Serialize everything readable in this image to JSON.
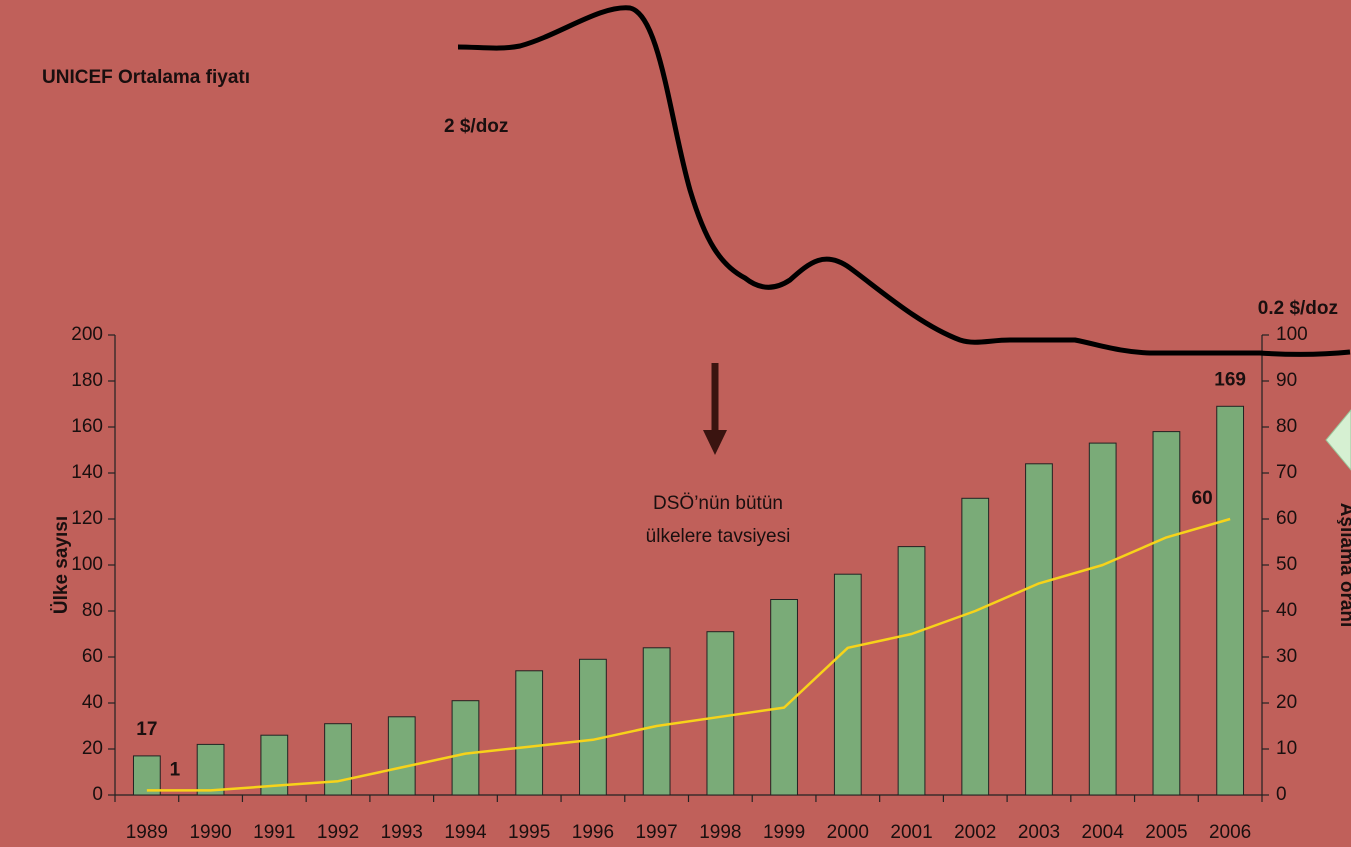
{
  "chart_data": {
    "type": "bar",
    "title": "UNICEF Ortalama fiyatı",
    "price_labels": [
      "2 $/doz",
      "0.2 $/doz"
    ],
    "annotation_lines": [
      "DSÖ’nün bütün",
      "ülkelere tavsiyesi"
    ],
    "y_label": "Ülke sayısı",
    "y2_label": "Aşılama oranı",
    "categories": [
      "1989",
      "1990",
      "1991",
      "1992",
      "1993",
      "1994",
      "1995",
      "1996",
      "1997",
      "1998",
      "1999",
      "2000",
      "2001",
      "2002",
      "2003",
      "2004",
      "2005",
      "2006"
    ],
    "series": [
      {
        "type": "bar",
        "color": "#7aab78",
        "values": [
          17,
          22,
          26,
          31,
          34,
          41,
          54,
          59,
          64,
          71,
          85,
          96,
          108,
          129,
          144,
          153,
          158,
          169
        ],
        "value_labels": [
          "17",
          null,
          null,
          null,
          null,
          null,
          null,
          null,
          null,
          null,
          null,
          null,
          null,
          null,
          null,
          null,
          null,
          "169"
        ],
        "label_color": "#86a77f"
      },
      {
        "type": "line",
        "axis": "y2",
        "color": "#f7d31a",
        "values": [
          1,
          1,
          2,
          3,
          6,
          9,
          10.5,
          12,
          15,
          17,
          19,
          32,
          35,
          40,
          46,
          50,
          56,
          60
        ],
        "value_labels": [
          "1",
          null,
          null,
          null,
          null,
          null,
          null,
          null,
          null,
          null,
          null,
          null,
          null,
          null,
          null,
          null,
          null,
          "60"
        ],
        "label_color": "#ffd21a"
      }
    ],
    "ylim": [
      0,
      200
    ],
    "yticks": [
      0,
      20,
      40,
      60,
      80,
      100,
      120,
      140,
      160,
      180,
      200
    ],
    "y2lim": [
      0,
      100
    ],
    "y2ticks": [
      0,
      10,
      20,
      30,
      40,
      50,
      60,
      70,
      80,
      90,
      100
    ]
  }
}
